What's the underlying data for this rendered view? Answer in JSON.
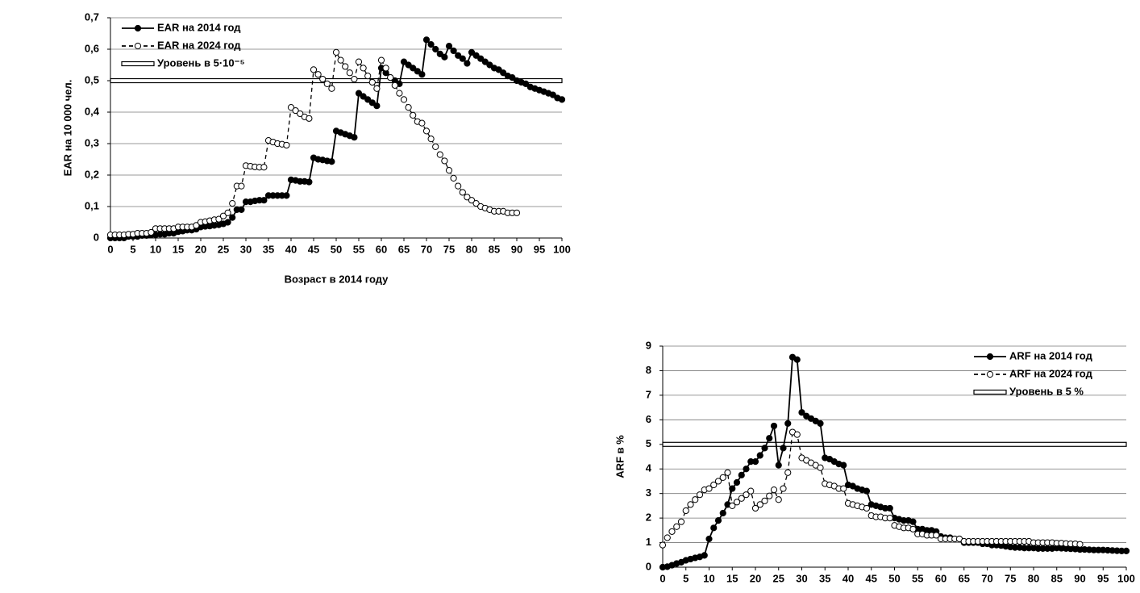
{
  "chart_data": [
    {
      "type": "line",
      "ylabel": "EAR на 10 000 чел.",
      "xlabel": "Возраст в 2014 году",
      "legend": "upper left",
      "grid": true,
      "xlim": [
        0,
        100
      ],
      "xticks": [
        0,
        5,
        10,
        15,
        20,
        25,
        30,
        35,
        40,
        45,
        50,
        55,
        60,
        65,
        70,
        75,
        80,
        85,
        90,
        95,
        100
      ],
      "ylim": [
        0,
        0.7
      ],
      "yticks": [
        0,
        {
          "value": 0.1,
          "label": "0,1"
        },
        {
          "value": 0.2,
          "label": "0,2"
        },
        {
          "value": 0.3,
          "label": "0,3"
        },
        {
          "value": 0.4,
          "label": "0,4"
        },
        {
          "value": 0.5,
          "label": "0,5"
        },
        {
          "value": 0.6,
          "label": "0,6"
        },
        {
          "value": 0.7,
          "label": "0,7"
        }
      ],
      "x": [
        0,
        1,
        2,
        3,
        4,
        5,
        6,
        7,
        8,
        9,
        10,
        11,
        12,
        13,
        14,
        15,
        16,
        17,
        18,
        19,
        20,
        21,
        22,
        23,
        24,
        25,
        26,
        27,
        28,
        29,
        30,
        31,
        32,
        33,
        34,
        35,
        36,
        37,
        38,
        39,
        40,
        41,
        42,
        43,
        44,
        45,
        46,
        47,
        48,
        49,
        50,
        51,
        52,
        53,
        54,
        55,
        56,
        57,
        58,
        59,
        60,
        61,
        62,
        63,
        64,
        65,
        66,
        67,
        68,
        69,
        70,
        71,
        72,
        73,
        74,
        75,
        76,
        77,
        78,
        79,
        80,
        81,
        82,
        83,
        84,
        85,
        86,
        87,
        88,
        89,
        90,
        91,
        92,
        93,
        94,
        95,
        96,
        97,
        98,
        99,
        100
      ],
      "series": [
        {
          "name": "EAR на 2014 год",
          "color": "#000000",
          "line_style": "solid",
          "marker": "filled",
          "values": [
            0,
            0,
            0,
            0,
            0.005,
            0.005,
            0.005,
            0.008,
            0.008,
            0.01,
            0.01,
            0.012,
            0.012,
            0.015,
            0.015,
            0.02,
            0.022,
            0.025,
            0.025,
            0.028,
            0.035,
            0.037,
            0.038,
            0.04,
            0.042,
            0.045,
            0.05,
            0.065,
            0.09,
            0.09,
            0.115,
            0.115,
            0.118,
            0.12,
            0.12,
            0.135,
            0.135,
            0.135,
            0.135,
            0.135,
            0.185,
            0.183,
            0.18,
            0.18,
            0.178,
            0.255,
            0.25,
            0.248,
            0.245,
            0.243,
            0.34,
            0.335,
            0.33,
            0.325,
            0.32,
            0.46,
            0.45,
            0.44,
            0.43,
            0.42,
            0.54,
            0.525,
            0.51,
            0.5,
            0.49,
            0.56,
            0.55,
            0.54,
            0.53,
            0.52,
            0.63,
            0.615,
            0.6,
            0.585,
            0.575,
            0.61,
            0.595,
            0.58,
            0.57,
            0.555,
            0.59,
            0.58,
            0.57,
            0.56,
            0.55,
            0.54,
            0.535,
            0.525,
            0.515,
            0.51,
            0.5,
            0.495,
            0.49,
            0.48,
            0.475,
            0.47,
            0.465,
            0.46,
            0.455,
            0.445,
            0.44
          ]
        },
        {
          "name": "EAR на 2024 год",
          "color": "#000000",
          "line_style": "dashed",
          "marker": "open",
          "values": [
            0.01,
            0.01,
            0.01,
            0.01,
            0.012,
            0.012,
            0.015,
            0.015,
            0.015,
            0.018,
            0.03,
            0.03,
            0.03,
            0.03,
            0.03,
            0.035,
            0.035,
            0.035,
            0.035,
            0.04,
            0.05,
            0.052,
            0.055,
            0.058,
            0.06,
            0.07,
            0.08,
            0.11,
            0.165,
            0.165,
            0.23,
            0.228,
            0.226,
            0.225,
            0.225,
            0.31,
            0.305,
            0.3,
            0.298,
            0.295,
            0.415,
            0.405,
            0.395,
            0.385,
            0.38,
            0.535,
            0.52,
            0.505,
            0.49,
            0.475,
            0.59,
            0.565,
            0.545,
            0.525,
            0.505,
            0.56,
            0.54,
            0.515,
            0.495,
            0.475,
            0.565,
            0.54,
            0.51,
            0.485,
            0.46,
            0.44,
            0.415,
            0.39,
            0.37,
            0.365,
            0.34,
            0.315,
            0.29,
            0.265,
            0.245,
            0.215,
            0.19,
            0.165,
            0.145,
            0.13,
            0.12,
            0.11,
            0.1,
            0.095,
            0.09,
            0.085,
            0.085,
            0.085,
            0.08,
            0.08,
            0.08,
            null,
            null,
            null,
            null,
            null,
            null,
            null,
            null,
            null,
            null
          ]
        }
      ],
      "level": {
        "name": "Уровень в 5·10⁻⁵",
        "value": 0.5
      }
    },
    {
      "type": "line",
      "ylabel": "ARF в %",
      "legend": "upper right",
      "grid": true,
      "xlim": [
        0,
        100
      ],
      "xticks": [
        0,
        5,
        10,
        15,
        20,
        25,
        30,
        35,
        40,
        45,
        50,
        55,
        60,
        65,
        70,
        75,
        80,
        85,
        90,
        95,
        100
      ],
      "ylim": [
        0,
        9
      ],
      "yticks": [
        0,
        1,
        2,
        3,
        4,
        5,
        6,
        7,
        8,
        9
      ],
      "x": [
        0,
        1,
        2,
        3,
        4,
        5,
        6,
        7,
        8,
        9,
        10,
        11,
        12,
        13,
        14,
        15,
        16,
        17,
        18,
        19,
        20,
        21,
        22,
        23,
        24,
        25,
        26,
        27,
        28,
        29,
        30,
        31,
        32,
        33,
        34,
        35,
        36,
        37,
        38,
        39,
        40,
        41,
        42,
        43,
        44,
        45,
        46,
        47,
        48,
        49,
        50,
        51,
        52,
        53,
        54,
        55,
        56,
        57,
        58,
        59,
        60,
        61,
        62,
        63,
        64,
        65,
        66,
        67,
        68,
        69,
        70,
        71,
        72,
        73,
        74,
        75,
        76,
        77,
        78,
        79,
        80,
        81,
        82,
        83,
        84,
        85,
        86,
        87,
        88,
        89,
        90,
        91,
        92,
        93,
        94,
        95,
        96,
        97,
        98,
        99,
        100
      ],
      "series": [
        {
          "name": "ARF на 2014 год",
          "color": "#000000",
          "line_style": "solid",
          "marker": "filled",
          "values": [
            0,
            0.02,
            0.08,
            0.15,
            0.2,
            0.28,
            0.33,
            0.38,
            0.42,
            0.48,
            1.15,
            1.6,
            1.9,
            2.2,
            2.55,
            3.2,
            3.45,
            3.75,
            4.0,
            4.3,
            4.3,
            4.55,
            4.85,
            5.25,
            5.75,
            4.15,
            4.85,
            5.85,
            8.55,
            8.45,
            6.3,
            6.15,
            6.05,
            5.95,
            5.85,
            4.45,
            4.4,
            4.3,
            4.2,
            4.15,
            3.35,
            3.3,
            3.2,
            3.15,
            3.1,
            2.55,
            2.5,
            2.45,
            2.4,
            2.4,
            2.0,
            1.95,
            1.9,
            1.9,
            1.85,
            1.55,
            1.55,
            1.5,
            1.5,
            1.45,
            1.25,
            1.2,
            1.2,
            1.15,
            1.15,
            1.0,
            1.0,
            1.0,
            1.0,
            0.95,
            0.95,
            0.9,
            0.9,
            0.88,
            0.85,
            0.82,
            0.8,
            0.8,
            0.78,
            0.78,
            0.78,
            0.76,
            0.76,
            0.76,
            0.76,
            0.78,
            0.77,
            0.76,
            0.75,
            0.74,
            0.72,
            0.72,
            0.71,
            0.7,
            0.7,
            0.7,
            0.69,
            0.68,
            0.67,
            0.66,
            0.66
          ]
        },
        {
          "name": "ARF на 2024 год",
          "color": "#000000",
          "line_style": "dashed",
          "marker": "open",
          "values": [
            0.9,
            1.2,
            1.45,
            1.65,
            1.85,
            2.3,
            2.55,
            2.75,
            2.95,
            3.15,
            3.2,
            3.35,
            3.5,
            3.65,
            3.85,
            2.5,
            2.65,
            2.8,
            2.95,
            3.1,
            2.4,
            2.55,
            2.7,
            2.9,
            3.15,
            2.75,
            3.2,
            3.85,
            5.5,
            5.4,
            4.45,
            4.35,
            4.25,
            4.15,
            4.05,
            3.4,
            3.35,
            3.3,
            3.2,
            3.2,
            2.6,
            2.55,
            2.5,
            2.45,
            2.4,
            2.1,
            2.05,
            2.05,
            2.0,
            2.0,
            1.7,
            1.65,
            1.6,
            1.6,
            1.55,
            1.35,
            1.35,
            1.3,
            1.3,
            1.3,
            1.15,
            1.15,
            1.15,
            1.15,
            1.15,
            1.05,
            1.05,
            1.05,
            1.05,
            1.05,
            1.05,
            1.05,
            1.05,
            1.05,
            1.05,
            1.05,
            1.05,
            1.05,
            1.05,
            1.05,
            1.0,
            1.0,
            1.0,
            1.0,
            1.0,
            0.98,
            0.98,
            0.96,
            0.95,
            0.95,
            0.93,
            null,
            null,
            null,
            null,
            null,
            null,
            null,
            null,
            null,
            null
          ]
        }
      ],
      "level": {
        "name": "Уровень в 5 %",
        "value": 5
      }
    }
  ]
}
